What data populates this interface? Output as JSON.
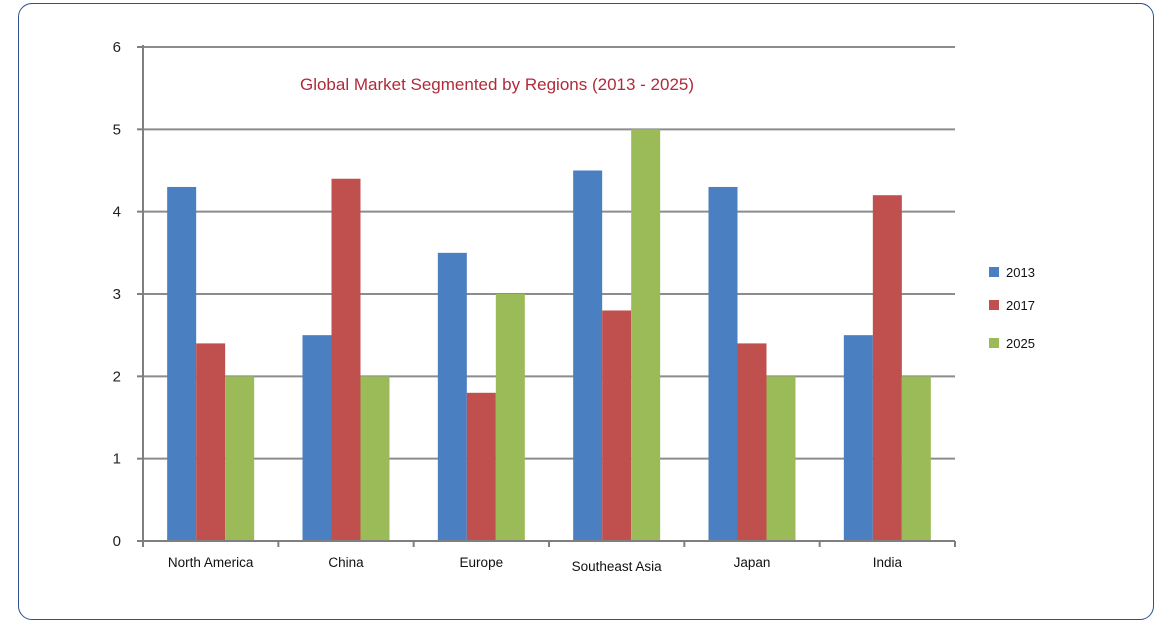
{
  "chart_data": {
    "type": "bar",
    "title": "Global Market Segmented by Regions (2013 - 2025)",
    "xlabel": "",
    "ylabel": "",
    "categories": [
      "North America",
      "China",
      "Europe",
      "Southeast Asia",
      "Japan",
      "India"
    ],
    "series": [
      {
        "name": "2013",
        "color": "#4a7fc1",
        "values": [
          4.3,
          2.5,
          3.5,
          4.5,
          4.3,
          2.5
        ]
      },
      {
        "name": "2017",
        "color": "#c0504d",
        "values": [
          2.4,
          4.4,
          1.8,
          2.8,
          2.4,
          4.2
        ]
      },
      {
        "name": "2025",
        "color": "#9bbb59",
        "values": [
          2.0,
          2.0,
          3.0,
          5.0,
          2.0,
          2.0
        ]
      }
    ],
    "ylim": [
      0,
      6
    ],
    "yticks": [
      0,
      1,
      2,
      3,
      4,
      5,
      6
    ],
    "grid": true,
    "legend": "right"
  },
  "colors": {
    "frame_border": "#2e4f8e",
    "title": "#b02a3a",
    "gridline": "#8c8c8c"
  }
}
